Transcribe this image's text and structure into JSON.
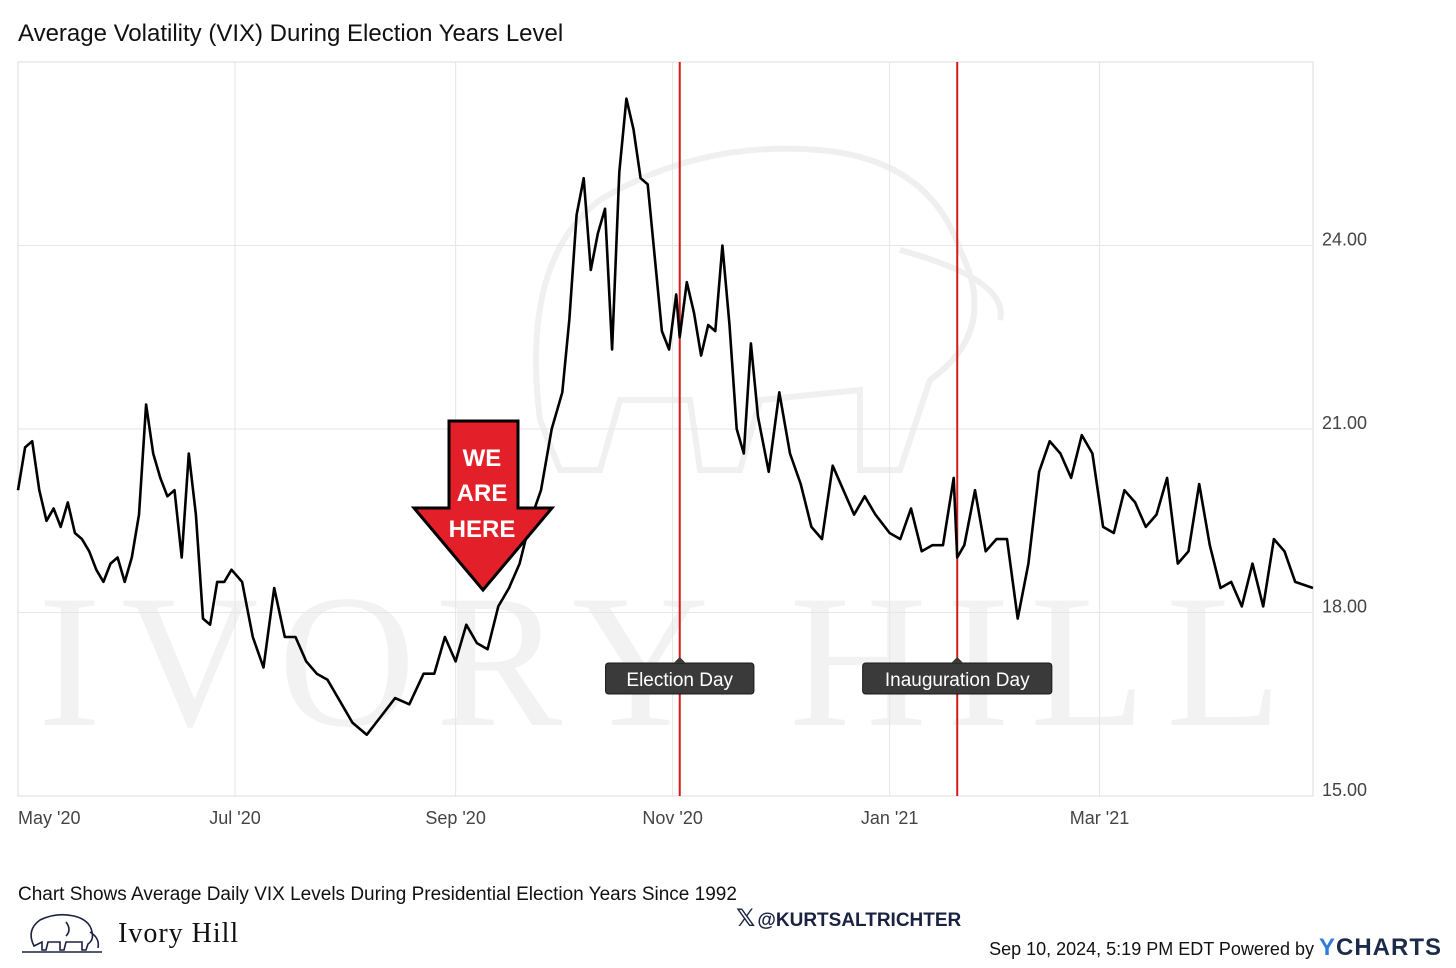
{
  "title": "Average Volatility (VIX) During Election Years Level",
  "caption": "Chart Shows Average Daily VIX Levels During Presidential Election Years Since 1992",
  "brand": {
    "name": "Ivory Hill",
    "watermark": "IVORY HILL",
    "logo": "elephant-icon"
  },
  "social": {
    "icon": "x-logo-icon",
    "handle": "@KURTSALTRICHTER"
  },
  "footer": {
    "timestamp": "Sep 10, 2024, 5:19 PM EDT",
    "powered": "Powered by",
    "provider_y": "Y",
    "provider_rest": "CHARTS"
  },
  "callout": {
    "lines": [
      "WE",
      "ARE",
      "HERE"
    ],
    "color": "#e3202a"
  },
  "chart_data": {
    "type": "line",
    "xlabel": "",
    "ylabel": "",
    "ylim": [
      15,
      27
    ],
    "yticks": [
      15,
      18,
      21,
      24
    ],
    "ytick_labels": [
      "15.00",
      "18.00",
      "21.00",
      "24.00"
    ],
    "xlim": [
      "2020-05-01",
      "2021-04-30"
    ],
    "xticks": [
      "2020-05-01",
      "2020-07-01",
      "2020-09-01",
      "2020-11-01",
      "2021-01-01",
      "2021-03-01"
    ],
    "xtick_labels": [
      "May '20",
      "Jul '20",
      "Sep '20",
      "Nov '20",
      "Jan '21",
      "Mar '21"
    ],
    "grid": true,
    "line_color": "#000000",
    "events": [
      {
        "date": "2020-11-03",
        "label": "Election Day",
        "color": "#d7191c"
      },
      {
        "date": "2021-01-20",
        "label": "Inauguration Day",
        "color": "#d7191c"
      }
    ],
    "series": [
      {
        "x": [
          "2020-05-01",
          "2020-05-03",
          "2020-05-05",
          "2020-05-07",
          "2020-05-09",
          "2020-05-11",
          "2020-05-13",
          "2020-05-15",
          "2020-05-17",
          "2020-05-19",
          "2020-05-21",
          "2020-05-23",
          "2020-05-25",
          "2020-05-27",
          "2020-05-29",
          "2020-05-31",
          "2020-06-02",
          "2020-06-04",
          "2020-06-06",
          "2020-06-08",
          "2020-06-10",
          "2020-06-12",
          "2020-06-14",
          "2020-06-16",
          "2020-06-18",
          "2020-06-20",
          "2020-06-22",
          "2020-06-24",
          "2020-06-26",
          "2020-06-28",
          "2020-06-30",
          "2020-07-03",
          "2020-07-06",
          "2020-07-09",
          "2020-07-12",
          "2020-07-15",
          "2020-07-18",
          "2020-07-21",
          "2020-07-24",
          "2020-07-27",
          "2020-07-30",
          "2020-08-03",
          "2020-08-07",
          "2020-08-11",
          "2020-08-15",
          "2020-08-19",
          "2020-08-23",
          "2020-08-26",
          "2020-08-29",
          "2020-09-01",
          "2020-09-04",
          "2020-09-07",
          "2020-09-10",
          "2020-09-13",
          "2020-09-16",
          "2020-09-19",
          "2020-09-22",
          "2020-09-25",
          "2020-09-28",
          "2020-10-01",
          "2020-10-03",
          "2020-10-05",
          "2020-10-07",
          "2020-10-09",
          "2020-10-11",
          "2020-10-13",
          "2020-10-15",
          "2020-10-17",
          "2020-10-19",
          "2020-10-21",
          "2020-10-23",
          "2020-10-25",
          "2020-10-27",
          "2020-10-29",
          "2020-10-31",
          "2020-11-02",
          "2020-11-03",
          "2020-11-05",
          "2020-11-07",
          "2020-11-09",
          "2020-11-11",
          "2020-11-13",
          "2020-11-15",
          "2020-11-17",
          "2020-11-19",
          "2020-11-21",
          "2020-11-23",
          "2020-11-25",
          "2020-11-28",
          "2020-12-01",
          "2020-12-04",
          "2020-12-07",
          "2020-12-10",
          "2020-12-13",
          "2020-12-16",
          "2020-12-19",
          "2020-12-22",
          "2020-12-25",
          "2020-12-28",
          "2021-01-01",
          "2021-01-04",
          "2021-01-07",
          "2021-01-10",
          "2021-01-13",
          "2021-01-16",
          "2021-01-19",
          "2021-01-20",
          "2021-01-22",
          "2021-01-25",
          "2021-01-28",
          "2021-01-31",
          "2021-02-03",
          "2021-02-06",
          "2021-02-09",
          "2021-02-12",
          "2021-02-15",
          "2021-02-18",
          "2021-02-21",
          "2021-02-24",
          "2021-02-27",
          "2021-03-02",
          "2021-03-05",
          "2021-03-08",
          "2021-03-11",
          "2021-03-14",
          "2021-03-17",
          "2021-03-20",
          "2021-03-23",
          "2021-03-26",
          "2021-03-29",
          "2021-04-01",
          "2021-04-04",
          "2021-04-07",
          "2021-04-10",
          "2021-04-13",
          "2021-04-16",
          "2021-04-19",
          "2021-04-22",
          "2021-04-25",
          "2021-04-30"
        ],
        "y": [
          20.0,
          20.7,
          20.8,
          20.0,
          19.5,
          19.7,
          19.4,
          19.8,
          19.3,
          19.2,
          19.0,
          18.7,
          18.5,
          18.8,
          18.9,
          18.5,
          18.9,
          19.6,
          21.4,
          20.6,
          20.2,
          19.9,
          20.0,
          18.9,
          20.6,
          19.6,
          17.9,
          17.8,
          18.5,
          18.5,
          18.7,
          18.5,
          17.6,
          17.1,
          18.4,
          17.6,
          17.6,
          17.2,
          17.0,
          16.9,
          16.6,
          16.2,
          16.0,
          16.3,
          16.6,
          16.5,
          17.0,
          17.0,
          17.6,
          17.2,
          17.8,
          17.5,
          17.4,
          18.1,
          18.4,
          18.8,
          19.5,
          20.0,
          21.0,
          21.6,
          22.8,
          24.5,
          25.1,
          23.6,
          24.2,
          24.6,
          22.3,
          25.2,
          26.4,
          25.9,
          25.1,
          25.0,
          23.8,
          22.6,
          22.3,
          23.2,
          22.5,
          23.4,
          22.9,
          22.2,
          22.7,
          22.6,
          24.0,
          22.7,
          21.0,
          20.6,
          22.4,
          21.2,
          20.3,
          21.6,
          20.6,
          20.1,
          19.4,
          19.2,
          20.4,
          20.0,
          19.6,
          19.9,
          19.6,
          19.3,
          19.2,
          19.7,
          19.0,
          19.1,
          19.1,
          20.2,
          18.9,
          19.1,
          20.0,
          19.0,
          19.2,
          19.2,
          17.9,
          18.8,
          20.3,
          20.8,
          20.6,
          20.2,
          20.9,
          20.6,
          19.4,
          19.3,
          20.0,
          19.8,
          19.4,
          19.6,
          20.2,
          18.8,
          19.0,
          20.1,
          19.1,
          18.4,
          18.5,
          18.1,
          18.8,
          18.1,
          19.2,
          19.0,
          18.5,
          18.4
        ]
      }
    ]
  }
}
